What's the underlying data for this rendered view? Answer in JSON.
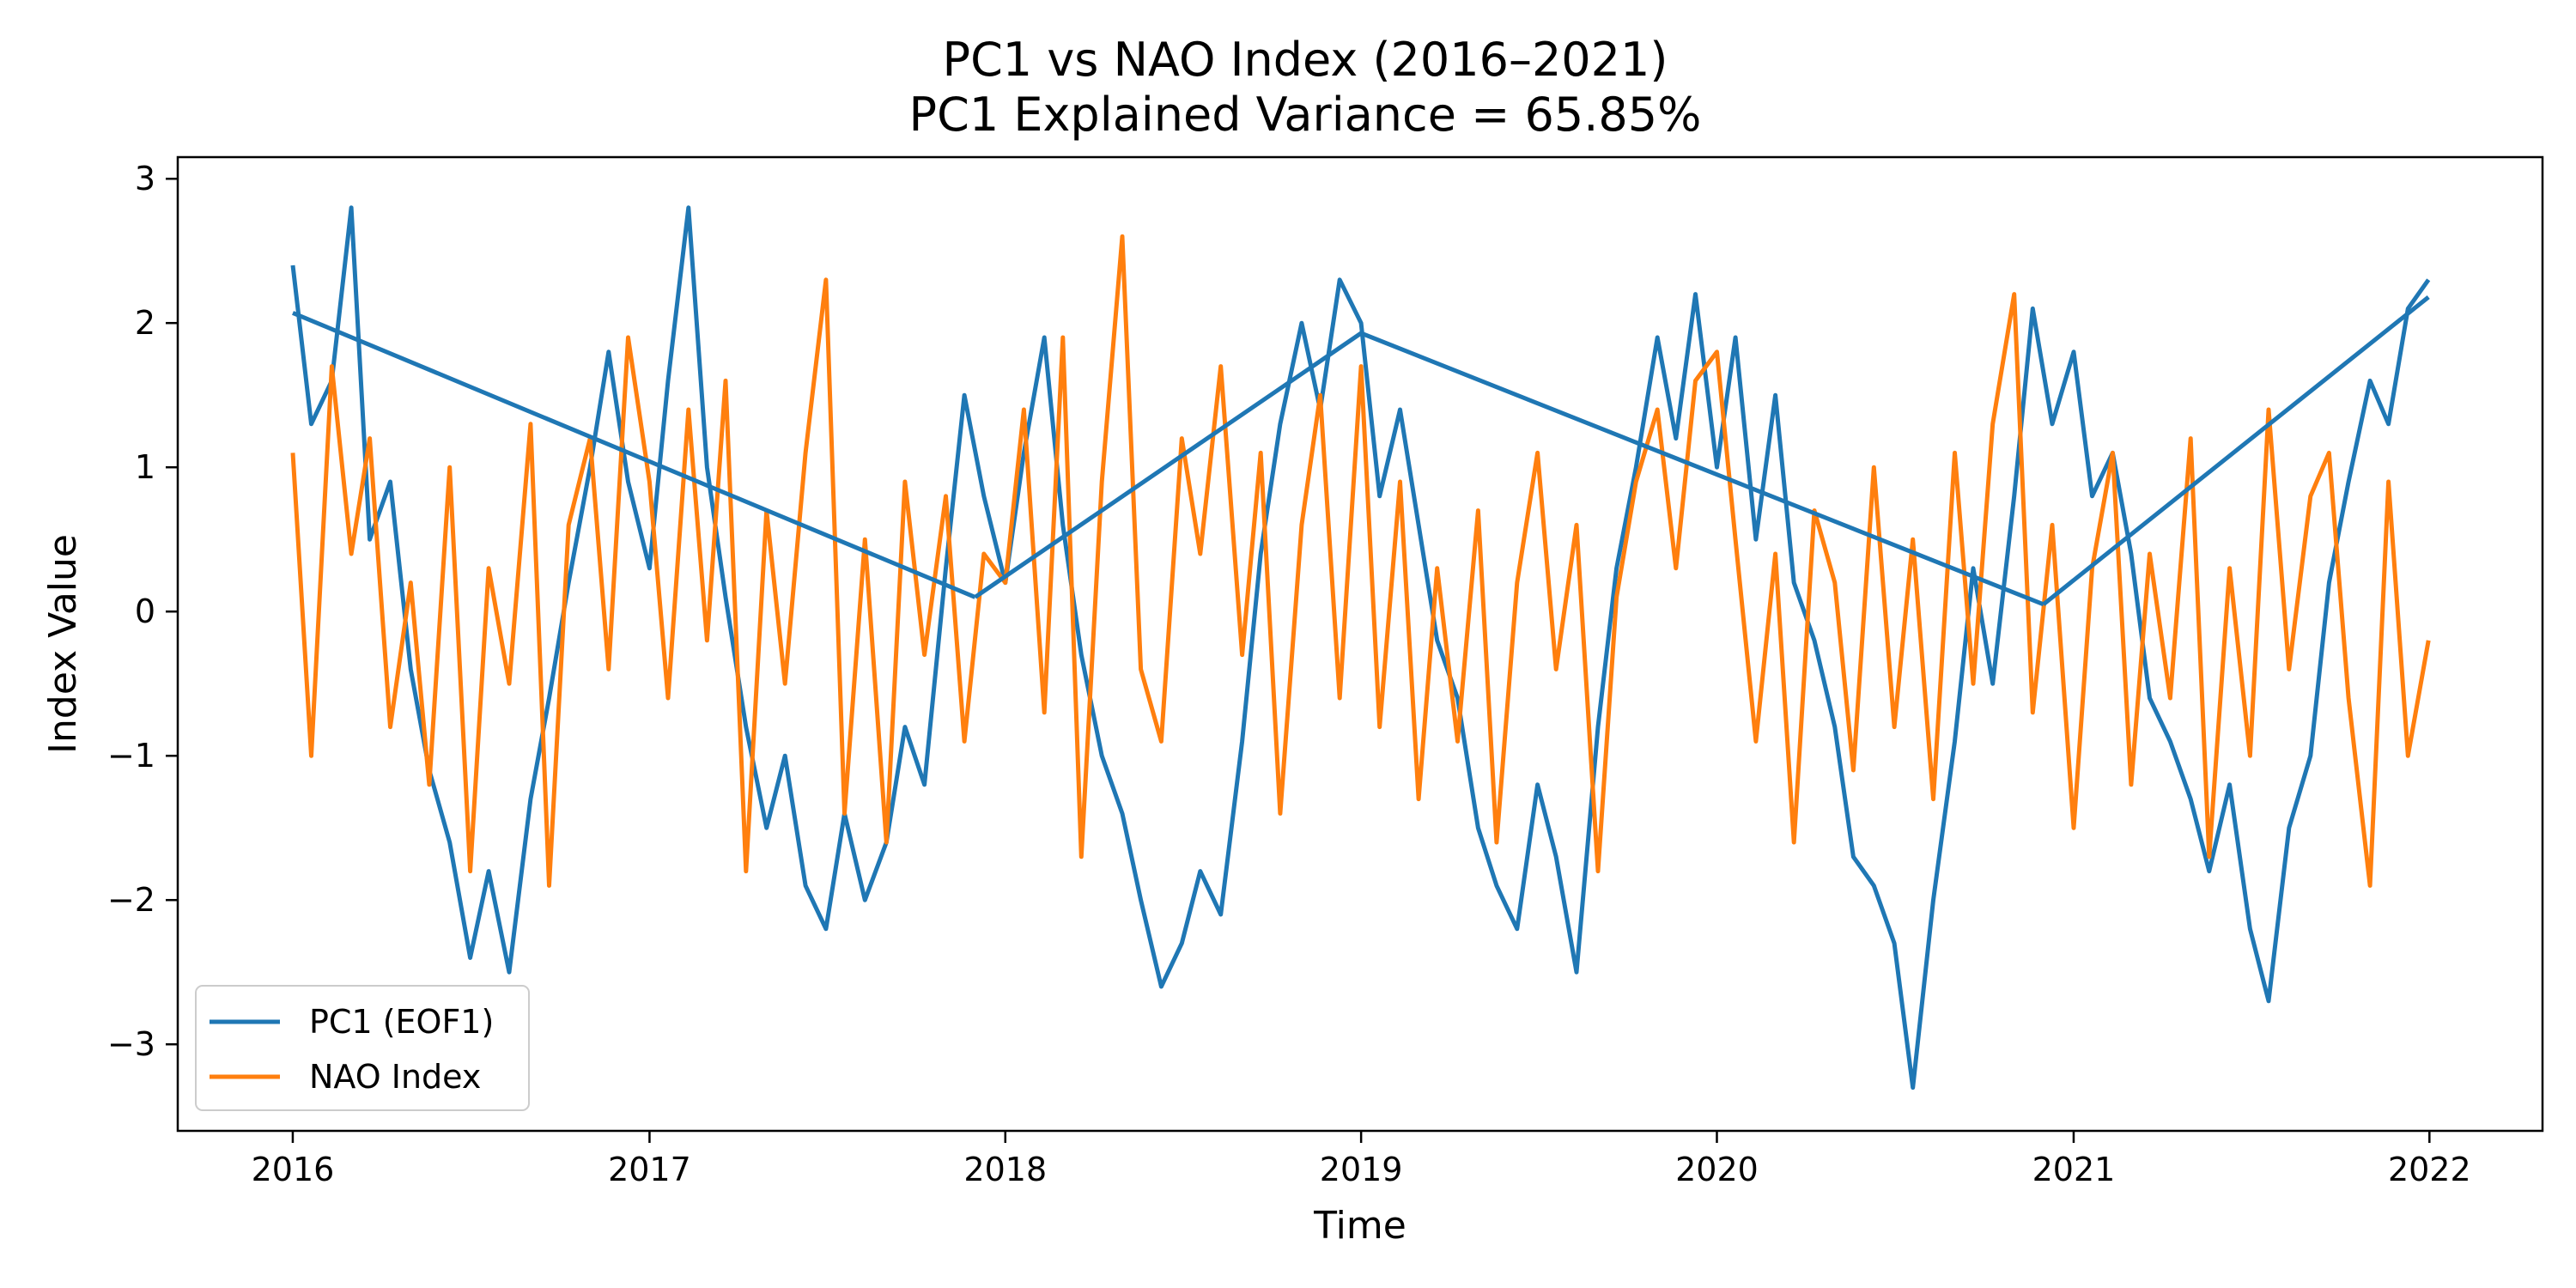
{
  "chart_data": {
    "type": "line",
    "title": "PC1 vs NAO Index (2016–2021)",
    "subtitle": "PC1 Explained Variance = 65.85%",
    "xlabel": "Time",
    "ylabel": "Index Value",
    "xlim": [
      "2015-09-05",
      "2022-04-27"
    ],
    "ylim": [
      -3.6,
      3.15
    ],
    "xticks": [
      "2016",
      "2017",
      "2018",
      "2019",
      "2020",
      "2021",
      "2022"
    ],
    "yticks": [
      -3,
      -2,
      -1,
      0,
      1,
      2,
      3
    ],
    "ytick_labels": [
      "−3",
      "−2",
      "−1",
      "0",
      "1",
      "2",
      "3"
    ],
    "grid": false,
    "legend_position": "lower-left",
    "series": [
      {
        "name": "PC1 (EOF1)",
        "color": "#1f77b4",
        "x": [
          "2016-01-01",
          "2016-01-20",
          "2016-02-10",
          "2016-03-01",
          "2016-03-20",
          "2016-04-10",
          "2016-05-01",
          "2016-05-20",
          "2016-06-10",
          "2016-07-01",
          "2016-07-20",
          "2016-08-10",
          "2016-09-01",
          "2016-09-20",
          "2016-10-10",
          "2016-11-01",
          "2016-11-20",
          "2016-12-10",
          "2017-01-01",
          "2017-01-20",
          "2017-02-10",
          "2017-03-01",
          "2017-03-20",
          "2017-04-10",
          "2017-05-01",
          "2017-05-20",
          "2017-06-10",
          "2017-07-01",
          "2017-07-20",
          "2017-08-10",
          "2017-09-01",
          "2017-09-20",
          "2017-10-10",
          "2017-11-01",
          "2017-11-20",
          "2017-12-10",
          "2018-01-01",
          "2018-01-20",
          "2018-02-10",
          "2018-03-01",
          "2018-03-20",
          "2018-04-10",
          "2018-05-01",
          "2018-05-20",
          "2018-06-10",
          "2018-07-01",
          "2018-07-20",
          "2018-08-10",
          "2018-09-01",
          "2018-09-20",
          "2018-10-10",
          "2018-11-01",
          "2018-11-20",
          "2018-12-10",
          "2019-01-01",
          "2019-01-20",
          "2019-02-10",
          "2019-03-01",
          "2019-03-20",
          "2019-04-10",
          "2019-05-01",
          "2019-05-20",
          "2019-06-10",
          "2019-07-01",
          "2019-07-20",
          "2019-08-10",
          "2019-09-01",
          "2019-09-20",
          "2019-10-10",
          "2019-11-01",
          "2019-11-20",
          "2019-12-10",
          "2020-01-01",
          "2020-01-20",
          "2020-02-10",
          "2020-03-01",
          "2020-03-20",
          "2020-04-10",
          "2020-05-01",
          "2020-05-20",
          "2020-06-10",
          "2020-07-01",
          "2020-07-20",
          "2020-08-10",
          "2020-09-01",
          "2020-09-20",
          "2020-10-10",
          "2020-11-01",
          "2020-11-20",
          "2020-12-10",
          "2021-01-01",
          "2021-01-20",
          "2021-02-10",
          "2021-03-01",
          "2021-03-20",
          "2021-04-10",
          "2021-05-01",
          "2021-05-20",
          "2021-06-10",
          "2021-07-01",
          "2021-07-20",
          "2021-08-10",
          "2021-09-01",
          "2021-09-20",
          "2021-10-10",
          "2021-11-01",
          "2021-11-20",
          "2021-12-10",
          "2021-12-31"
        ],
        "y": [
          2.4,
          1.3,
          1.6,
          2.8,
          0.5,
          0.9,
          -0.4,
          -1.1,
          -1.6,
          -2.4,
          -1.8,
          -2.5,
          -1.3,
          -0.6,
          0.2,
          1.0,
          1.8,
          0.9,
          0.3,
          1.6,
          2.8,
          1.0,
          0.1,
          -0.8,
          -1.5,
          -1.0,
          -1.9,
          -2.2,
          -1.4,
          -2.0,
          -1.6,
          -0.8,
          -1.2,
          0.3,
          1.5,
          0.8,
          0.2,
          1.1,
          1.9,
          0.6,
          -0.3,
          -1.0,
          -1.4,
          -2.0,
          -2.6,
          -2.3,
          -1.8,
          -2.1,
          -0.9,
          0.4,
          1.3,
          2.0,
          1.4,
          2.3,
          2.0,
          0.8,
          1.4,
          0.6,
          -0.2,
          -0.6,
          -1.5,
          -1.9,
          -2.2,
          -1.2,
          -1.7,
          -2.5,
          -0.8,
          0.3,
          1.0,
          1.9,
          1.2,
          2.2,
          1.0,
          1.9,
          0.5,
          1.5,
          0.2,
          -0.2,
          -0.8,
          -1.7,
          -1.9,
          -2.3,
          -3.3,
          -2.0,
          -0.9,
          0.3,
          -0.5,
          0.8,
          2.1,
          1.3,
          1.8,
          0.8,
          1.1,
          0.4,
          -0.6,
          -0.9,
          -1.3,
          -1.8,
          -1.2,
          -2.2,
          -2.7,
          -1.5,
          -1.0,
          0.2,
          0.9,
          1.6,
          1.3,
          2.1,
          2.3
        ]
      },
      {
        "name": "NAO Index",
        "color": "#ff7f0e",
        "x": [
          "2016-01-01",
          "2016-01-20",
          "2016-02-10",
          "2016-03-01",
          "2016-03-20",
          "2016-04-10",
          "2016-05-01",
          "2016-05-20",
          "2016-06-10",
          "2016-07-01",
          "2016-07-20",
          "2016-08-10",
          "2016-09-01",
          "2016-09-20",
          "2016-10-10",
          "2016-11-01",
          "2016-11-20",
          "2016-12-10",
          "2017-01-01",
          "2017-01-20",
          "2017-02-10",
          "2017-03-01",
          "2017-03-20",
          "2017-04-10",
          "2017-05-01",
          "2017-05-20",
          "2017-06-10",
          "2017-07-01",
          "2017-07-20",
          "2017-08-10",
          "2017-09-01",
          "2017-09-20",
          "2017-10-10",
          "2017-11-01",
          "2017-11-20",
          "2017-12-10",
          "2018-01-01",
          "2018-01-20",
          "2018-02-10",
          "2018-03-01",
          "2018-03-20",
          "2018-04-10",
          "2018-05-01",
          "2018-05-20",
          "2018-06-10",
          "2018-07-01",
          "2018-07-20",
          "2018-08-10",
          "2018-09-01",
          "2018-09-20",
          "2018-10-10",
          "2018-11-01",
          "2018-11-20",
          "2018-12-10",
          "2019-01-01",
          "2019-01-20",
          "2019-02-10",
          "2019-03-01",
          "2019-03-20",
          "2019-04-10",
          "2019-05-01",
          "2019-05-20",
          "2019-06-10",
          "2019-07-01",
          "2019-07-20",
          "2019-08-10",
          "2019-09-01",
          "2019-09-20",
          "2019-10-10",
          "2019-11-01",
          "2019-11-20",
          "2019-12-10",
          "2020-01-01",
          "2020-01-20",
          "2020-02-10",
          "2020-03-01",
          "2020-03-20",
          "2020-04-10",
          "2020-05-01",
          "2020-05-20",
          "2020-06-10",
          "2020-07-01",
          "2020-07-20",
          "2020-08-10",
          "2020-09-01",
          "2020-09-20",
          "2020-10-10",
          "2020-11-01",
          "2020-11-20",
          "2020-12-10",
          "2021-01-01",
          "2021-01-20",
          "2021-02-10",
          "2021-03-01",
          "2021-03-20",
          "2021-04-10",
          "2021-05-01",
          "2021-05-20",
          "2021-06-10",
          "2021-07-01",
          "2021-07-20",
          "2021-08-10",
          "2021-09-01",
          "2021-09-20",
          "2021-10-10",
          "2021-11-01",
          "2021-11-20",
          "2021-12-10",
          "2021-12-31"
        ],
        "y": [
          1.1,
          -1.0,
          1.7,
          0.4,
          1.2,
          -0.8,
          0.2,
          -1.2,
          1.0,
          -1.8,
          0.3,
          -0.5,
          1.3,
          -1.9,
          0.6,
          1.2,
          -0.4,
          1.9,
          0.9,
          -0.6,
          1.4,
          -0.2,
          1.6,
          -1.8,
          0.7,
          -0.5,
          1.1,
          2.3,
          -1.4,
          0.5,
          -1.6,
          0.9,
          -0.3,
          0.8,
          -0.9,
          0.4,
          0.2,
          1.4,
          -0.7,
          1.9,
          -1.7,
          0.9,
          2.6,
          -0.4,
          -0.9,
          1.2,
          0.4,
          1.7,
          -0.3,
          1.1,
          -1.4,
          0.6,
          1.5,
          -0.6,
          1.7,
          -0.8,
          0.9,
          -1.3,
          0.3,
          -0.9,
          0.7,
          -1.6,
          0.2,
          1.1,
          -0.4,
          0.6,
          -1.8,
          0.1,
          0.9,
          1.4,
          0.3,
          1.6,
          1.8,
          0.5,
          -0.9,
          0.4,
          -1.6,
          0.7,
          0.2,
          -1.1,
          1.0,
          -0.8,
          0.5,
          -1.3,
          1.1,
          -0.5,
          1.3,
          2.2,
          -0.7,
          0.6,
          -1.5,
          0.3,
          1.1,
          -1.2,
          0.4,
          -0.6,
          1.2,
          -1.7,
          0.3,
          -1.0,
          1.4,
          -0.4,
          0.8,
          1.1,
          -0.6,
          -1.9,
          0.9,
          -1.0,
          -0.2
        ]
      }
    ],
    "tail_segments": [
      {
        "series": "PC1 (EOF1)",
        "x": [
          "2016-01-01",
          "2017-12-01"
        ],
        "y": [
          2.07,
          0.1
        ]
      },
      {
        "series": "PC1 (EOF1)",
        "x": [
          "2017-12-01",
          "2019-01-01"
        ],
        "y": [
          0.1,
          1.93
        ]
      },
      {
        "series": "PC1 (EOF1)",
        "x": [
          "2019-01-01",
          "2020-12-01"
        ],
        "y": [
          1.93,
          0.05
        ]
      },
      {
        "series": "PC1 (EOF1)",
        "x": [
          "2020-12-01",
          "2021-12-31"
        ],
        "y": [
          0.05,
          2.18
        ]
      }
    ]
  }
}
